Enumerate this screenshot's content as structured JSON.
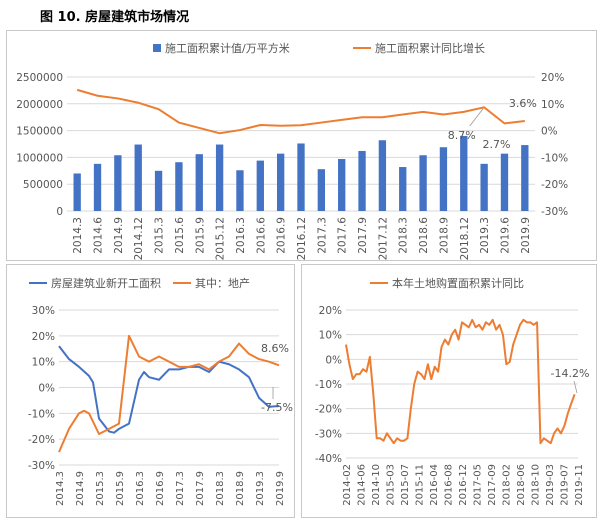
{
  "figure": {
    "title": "图 10. 房屋建筑市场情况"
  },
  "colors": {
    "bar": "#4472c4",
    "orange": "#ed7d31",
    "blue": "#4472c4",
    "grid": "#d9d9d9",
    "text": "#595959"
  },
  "chart_data": [
    {
      "id": "construction-area",
      "type": "bar+line",
      "categories": [
        "2014.3",
        "2014.6",
        "2014.9",
        "2014.12",
        "2015.3",
        "2015.6",
        "2015.9",
        "2015.12",
        "2016.3",
        "2016.6",
        "2016.9",
        "2016.12",
        "2017.3",
        "2017.6",
        "2017.9",
        "2017.12",
        "2018.3",
        "2018.6",
        "2018.9",
        "2018.12",
        "2019.3",
        "2019.6",
        "2019.9"
      ],
      "series": [
        {
          "name": "施工面积累计值/万平方米",
          "kind": "bar",
          "axis": "left",
          "values": [
            700000,
            880000,
            1040000,
            1240000,
            750000,
            910000,
            1060000,
            1240000,
            760000,
            940000,
            1070000,
            1260000,
            780000,
            970000,
            1120000,
            1320000,
            820000,
            1040000,
            1190000,
            1400000,
            880000,
            1070000,
            1230000
          ]
        },
        {
          "name": "施工面积累计同比增长",
          "kind": "line",
          "axis": "right",
          "values": [
            15.2,
            13.0,
            12.0,
            10.4,
            8.0,
            3.0,
            1.0,
            -1.0,
            0.2,
            2.1,
            1.8,
            2.0,
            3.0,
            4.0,
            5.0,
            5.0,
            6.0,
            7.0,
            6.0,
            7.0,
            8.7,
            2.7,
            3.6
          ]
        }
      ],
      "y_left": {
        "ticks": [
          "0",
          "500000",
          "1000000",
          "1500000",
          "2000000",
          "2500000"
        ],
        "range": [
          0,
          2500000
        ]
      },
      "y_right": {
        "ticks": [
          "-30%",
          "-20%",
          "-10%",
          "0%",
          "10%",
          "20%"
        ],
        "range": [
          -30,
          20
        ]
      },
      "annotations": [
        "8.7%",
        "2.7%",
        "3.6%"
      ],
      "legend": "top"
    },
    {
      "id": "new-starts",
      "type": "line",
      "categories": [
        "2014.3",
        "2014.9",
        "2015.3",
        "2015.9",
        "2016.3",
        "2016.9",
        "2017.3",
        "2017.9",
        "2018.3",
        "2018.9",
        "2019.3",
        "2019.9"
      ],
      "x_index_max": 22,
      "series": [
        {
          "name": "房屋建筑业新开工面积",
          "color": "blue",
          "x": [
            0,
            1,
            2,
            3,
            3.4,
            4,
            5,
            5.5,
            6,
            7,
            8,
            8.5,
            9,
            10,
            11,
            12,
            13,
            14,
            15,
            16,
            17,
            18,
            19,
            20,
            21,
            21.5,
            22
          ],
          "values": [
            16,
            11,
            8,
            4.5,
            2,
            -12,
            -17,
            -17.5,
            -16,
            -14,
            3,
            6,
            4,
            3,
            7,
            7,
            8,
            8,
            6,
            10,
            9,
            7,
            4,
            -4,
            -7.5,
            -7.3,
            -7.2
          ]
        },
        {
          "name": "其中：地产",
          "color": "orange",
          "x": [
            0,
            1,
            2,
            2.5,
            3,
            4,
            5,
            6,
            7,
            7.5,
            8,
            9,
            10,
            11,
            12,
            13,
            14,
            14.5,
            15,
            16,
            17,
            18,
            19,
            20,
            21,
            22
          ],
          "values": [
            -25,
            -16,
            -10,
            -9,
            -10,
            -18,
            -16,
            -14,
            20,
            16,
            12,
            10,
            12,
            10,
            8,
            8,
            9,
            8,
            7,
            10,
            12,
            17,
            13,
            11,
            10,
            8.6
          ]
        }
      ],
      "y": {
        "ticks": [
          "-30%",
          "-20%",
          "-10%",
          "0%",
          "10%",
          "20%",
          "30%"
        ],
        "range": [
          -30,
          30
        ]
      },
      "annotations": [
        "8.6%",
        "-7.5%"
      ],
      "legend": "top"
    },
    {
      "id": "land-purchase",
      "type": "line",
      "categories": [
        "2014-02",
        "2014-06",
        "2014-10",
        "2015-03",
        "2015-07",
        "2015-11",
        "2016-04",
        "2016-08",
        "2016-12",
        "2017-05",
        "2017-09",
        "2018-02",
        "2018-06",
        "2018-10",
        "2019-03",
        "2019-07",
        "2019-11"
      ],
      "x_index_max": 68,
      "series": [
        {
          "name": "本年土地购置面积累计同比",
          "color": "orange",
          "x": [
            0,
            1,
            2,
            3,
            4,
            5,
            6,
            7,
            8,
            9,
            10,
            11,
            12,
            13,
            14,
            15,
            16,
            17,
            18,
            19,
            20,
            21,
            22,
            23,
            24,
            25,
            26,
            27,
            28,
            29,
            30,
            31,
            32,
            33,
            34,
            35,
            36,
            37,
            38,
            39,
            40,
            41,
            42,
            43,
            44,
            45,
            46,
            47,
            48,
            49,
            50,
            51,
            52,
            53,
            54,
            55,
            56,
            57,
            58,
            59,
            60,
            61,
            62,
            63,
            64,
            65,
            66,
            67
          ],
          "values": [
            6,
            -2,
            -8,
            -6,
            -6,
            -4,
            -5,
            1,
            -14,
            -32,
            -32,
            -33,
            -30,
            -32,
            -34,
            -32,
            -33,
            -33,
            -32,
            -20,
            -10,
            -5,
            -6,
            -8,
            -2,
            -8,
            -3,
            -5,
            5,
            8,
            6,
            10,
            12,
            8,
            15,
            14,
            13,
            16,
            13,
            14,
            12,
            15,
            14,
            16,
            12,
            14,
            10,
            -2,
            -1,
            6,
            10,
            14,
            16,
            15,
            15,
            14,
            15,
            -34,
            -32,
            -33,
            -34,
            -30,
            -28,
            -30,
            -27,
            -22,
            -18,
            -14.2
          ]
        }
      ],
      "y": {
        "ticks": [
          "-40%",
          "-30%",
          "-20%",
          "-10%",
          "0%",
          "10%",
          "20%"
        ],
        "range": [
          -40,
          20
        ]
      },
      "annotations": [
        "-14.2%"
      ],
      "legend": "top"
    }
  ]
}
